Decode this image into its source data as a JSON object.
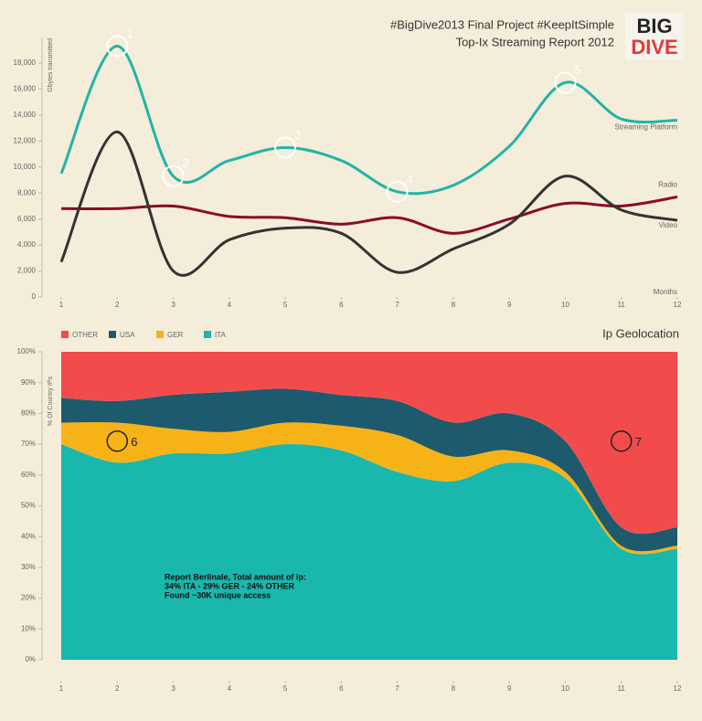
{
  "logo": [
    "BIG",
    "DIVE"
  ],
  "chart_data": [
    {
      "type": "line",
      "title": "#BigDive2013 Final Project #KeepItSimple",
      "subtitle": "Top-Ix Streaming Report 2012",
      "y_label": "Gbytes transmitted",
      "x_label": "Months",
      "x": [
        1,
        2,
        3,
        4,
        5,
        6,
        7,
        8,
        9,
        10,
        11,
        12
      ],
      "xlim": [
        1,
        12
      ],
      "xticks": [
        1,
        2,
        3,
        4,
        5,
        6,
        7,
        8,
        9,
        10,
        11,
        12
      ],
      "ylim": [
        0,
        20000
      ],
      "yticks": [
        0,
        {
          "value": 2000,
          "label": "2,000"
        },
        {
          "value": 4000,
          "label": "4,000"
        },
        {
          "value": 6000,
          "label": "6,000"
        },
        {
          "value": 8000,
          "label": "8,000"
        },
        {
          "value": 10000,
          "label": "10,000"
        },
        {
          "value": 12000,
          "label": "12,000"
        },
        {
          "value": 14000,
          "label": "14,000"
        },
        {
          "value": 16000,
          "label": "16,000"
        },
        {
          "value": 18000,
          "label": "18,000"
        }
      ],
      "series": [
        {
          "name": "Streaming Platform",
          "color": "#22b3a8",
          "values": [
            9500,
            19300,
            9300,
            10500,
            11500,
            10500,
            8100,
            8600,
            11600,
            16500,
            13700,
            13600
          ]
        },
        {
          "name": "Radio",
          "color": "#8b0a2a",
          "values": [
            6800,
            6800,
            7000,
            6200,
            6100,
            5600,
            6100,
            4900,
            6000,
            7200,
            7000,
            7700
          ]
        },
        {
          "name": "Video",
          "color": "#333333",
          "values": [
            2700,
            12700,
            2000,
            4400,
            5300,
            4900,
            1900,
            3700,
            5600,
            9300,
            6700,
            5900
          ]
        }
      ],
      "annotation_color": "#ffffff",
      "annotations": [
        {
          "text": "1",
          "x": 2,
          "y": 19300
        },
        {
          "text": "2",
          "x": 3,
          "y": 9300
        },
        {
          "text": "3",
          "x": 5,
          "y": 11500
        },
        {
          "text": "4",
          "x": 7,
          "y": 8100
        },
        {
          "text": "5",
          "x": 10,
          "y": 16500
        }
      ]
    },
    {
      "type": "area",
      "title": "Ip Geolocation",
      "y_label": "% Of Country IPs",
      "x": [
        1,
        2,
        3,
        4,
        5,
        6,
        7,
        8,
        9,
        10,
        11,
        12
      ],
      "xlim": [
        1,
        12
      ],
      "xticks": [
        1,
        2,
        3,
        4,
        5,
        6,
        7,
        8,
        9,
        10,
        11,
        12
      ],
      "ylim": [
        0,
        100
      ],
      "yticks": [
        {
          "value": 0,
          "label": "0%"
        },
        {
          "value": 10,
          "label": "10%"
        },
        {
          "value": 20,
          "label": "20%"
        },
        {
          "value": 30,
          "label": "30%"
        },
        {
          "value": 40,
          "label": "40%"
        },
        {
          "value": 50,
          "label": "50%"
        },
        {
          "value": 60,
          "label": "60%"
        },
        {
          "value": 70,
          "label": "70%"
        },
        {
          "value": 80,
          "label": "80%"
        },
        {
          "value": 90,
          "label": "90%"
        },
        {
          "value": 100,
          "label": "100%"
        }
      ],
      "series": [
        {
          "name": "ITA",
          "color": "#1ab7ac",
          "values": [
            70,
            64,
            67,
            67,
            70,
            68,
            61,
            58,
            64,
            59,
            36,
            36
          ]
        },
        {
          "name": "GER",
          "color": "#f6b318",
          "values": [
            7,
            13,
            8,
            7,
            7,
            8,
            12,
            8,
            4,
            2,
            1,
            1
          ]
        },
        {
          "name": "USA",
          "color": "#1e5a6e",
          "values": [
            8,
            7,
            11,
            13,
            11,
            10,
            11,
            11,
            12,
            10,
            6,
            6
          ]
        },
        {
          "name": "OTHER",
          "color": "#f24b4b",
          "values": [
            15,
            16,
            14,
            13,
            12,
            14,
            16,
            23,
            20,
            29,
            57,
            57
          ]
        }
      ],
      "stacked": true,
      "annotation_color": "#222222",
      "annotations": [
        {
          "text": "6",
          "x": 2,
          "y": 71
        },
        {
          "text": "7",
          "x": 11,
          "y": 71
        }
      ],
      "notes": [
        "Report Berlinale, Total amount of ip:",
        "34% ITA - 29% GER - 24% OTHER",
        "Found ~30K unique access"
      ]
    }
  ]
}
